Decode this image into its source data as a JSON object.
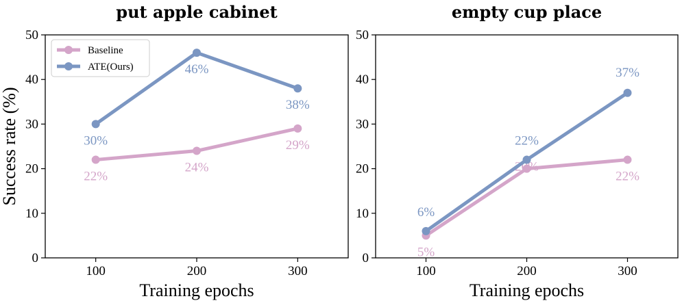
{
  "colors": {
    "baseline": "#d4a5c9",
    "ate": "#7b96c2"
  },
  "chart_data": [
    {
      "type": "line",
      "title": "put apple cabinet",
      "xlabel": "Training epochs",
      "ylabel": "Success rate (%)",
      "x": [
        100,
        200,
        300
      ],
      "xlim": [
        50,
        350
      ],
      "ylim": [
        0,
        50
      ],
      "yticks": [
        "0",
        "10",
        "20",
        "30",
        "40",
        "50"
      ],
      "xticks": [
        "100",
        "200",
        "300"
      ],
      "legend": "top-left",
      "grid": false,
      "series": [
        {
          "name": "Baseline",
          "values": [
            22,
            24,
            29
          ],
          "labels": [
            "22%",
            "24%",
            "29%"
          ]
        },
        {
          "name": "ATE(Ours)",
          "values": [
            30,
            46,
            38
          ],
          "labels": [
            "30%",
            "46%",
            "38%"
          ]
        }
      ]
    },
    {
      "type": "line",
      "title": "empty cup place",
      "xlabel": "Training epochs",
      "ylabel": "",
      "x": [
        100,
        200,
        300
      ],
      "xlim": [
        50,
        350
      ],
      "ylim": [
        0,
        50
      ],
      "yticks": [
        "0",
        "10",
        "20",
        "30",
        "40",
        "50"
      ],
      "xticks": [
        "100",
        "200",
        "300"
      ],
      "grid": false,
      "series": [
        {
          "name": "Baseline",
          "values": [
            5,
            20,
            22
          ],
          "labels": [
            "5%",
            "20%",
            "22%"
          ]
        },
        {
          "name": "ATE(Ours)",
          "values": [
            6,
            22,
            37
          ],
          "labels": [
            "6%",
            "22%",
            "37%"
          ]
        }
      ]
    }
  ]
}
